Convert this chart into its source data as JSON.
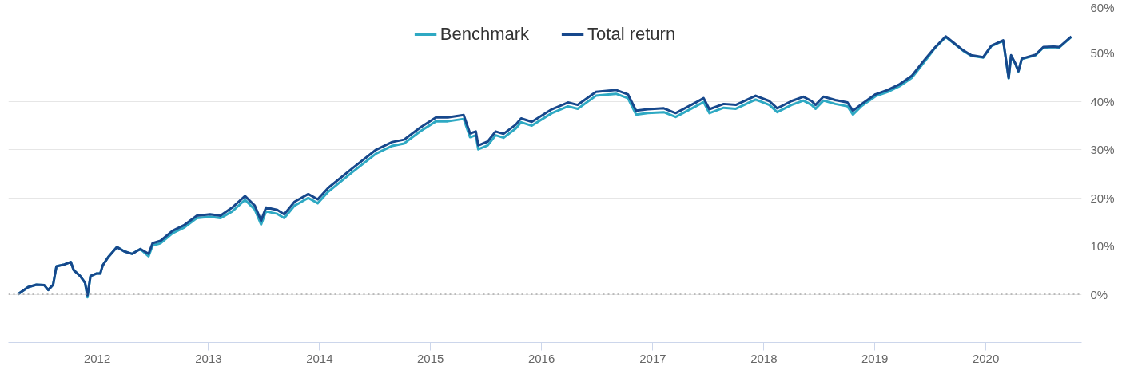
{
  "chart_data": {
    "type": "line",
    "x": [
      "2011-04-15",
      "2011-05-19",
      "2011-06-15",
      "2011-07-11",
      "2011-07-24",
      "2011-08-09",
      "2011-08-20",
      "2011-09-15",
      "2011-10-06",
      "2011-10-16",
      "2011-11-06",
      "2011-11-22",
      "2011-11-30",
      "2011-12-10",
      "2011-12-29",
      "2012-01-11",
      "2012-01-19",
      "2012-02-06",
      "2012-03-06",
      "2012-03-30",
      "2012-04-25",
      "2012-05-22",
      "2012-06-18",
      "2012-07-01",
      "2012-07-27",
      "2012-09-05",
      "2012-10-14",
      "2012-11-23",
      "2013-01-06",
      "2013-02-09",
      "2013-03-20",
      "2013-05-01",
      "2013-06-02",
      "2013-06-23",
      "2013-07-09",
      "2013-08-15",
      "2013-09-07",
      "2013-10-11",
      "2013-11-25",
      "2013-12-26",
      "2014-01-30",
      "2014-04-18",
      "2014-07-06",
      "2014-08-28",
      "2014-10-06",
      "2014-11-28",
      "2015-01-19",
      "2015-02-27",
      "2015-04-20",
      "2015-05-11",
      "2015-05-30",
      "2015-06-07",
      "2015-07-08",
      "2015-08-03",
      "2015-08-29",
      "2015-10-08",
      "2015-10-26",
      "2015-11-30",
      "2016-02-04",
      "2016-03-28",
      "2016-04-29",
      "2016-06-28",
      "2016-09-02",
      "2016-10-11",
      "2016-11-07",
      "2016-12-16",
      "2017-02-06",
      "2017-03-17",
      "2017-05-22",
      "2017-06-17",
      "2017-07-06",
      "2017-08-22",
      "2017-10-01",
      "2017-12-05",
      "2018-01-19",
      "2018-02-14",
      "2018-04-02",
      "2018-05-11",
      "2018-06-07",
      "2018-06-20",
      "2018-07-16",
      "2018-08-24",
      "2018-10-03",
      "2018-10-21",
      "2018-11-19",
      "2019-01-03",
      "2019-02-12",
      "2019-03-24",
      "2019-05-02",
      "2019-06-10",
      "2019-07-19",
      "2019-08-22",
      "2019-09-15",
      "2019-10-19",
      "2019-11-14",
      "2019-12-23",
      "2020-01-19",
      "2020-02-27",
      "2020-03-16",
      "2020-03-24",
      "2020-04-07",
      "2020-04-17",
      "2020-04-28",
      "2020-06-12",
      "2020-07-08",
      "2020-08-11",
      "2020-08-29",
      "2020-10-08"
    ],
    "series": [
      {
        "name": "Benchmark",
        "color": "#2ea9c3",
        "values": [
          0,
          1.5,
          2.0,
          1.9,
          0.9,
          2.0,
          5.8,
          6.2,
          6.7,
          5.0,
          3.8,
          2.4,
          -0.6,
          3.8,
          4.3,
          4.3,
          6.0,
          7.7,
          9.8,
          8.9,
          8.4,
          9.4,
          7.9,
          10.1,
          10.6,
          12.7,
          13.9,
          15.8,
          16.1,
          15.8,
          17.2,
          19.6,
          17.6,
          14.5,
          17.2,
          16.7,
          15.8,
          18.4,
          20.0,
          18.9,
          21.3,
          25.3,
          29.2,
          30.8,
          31.3,
          33.8,
          35.9,
          35.9,
          36.4,
          32.6,
          33.0,
          30.1,
          30.9,
          33.0,
          32.5,
          34.4,
          35.7,
          35.0,
          37.6,
          39.0,
          38.5,
          41.2,
          41.6,
          40.7,
          37.3,
          37.6,
          37.8,
          36.8,
          39.0,
          39.9,
          37.6,
          38.7,
          38.5,
          40.4,
          39.3,
          37.8,
          39.3,
          40.2,
          39.3,
          38.5,
          40.2,
          39.5,
          39.0,
          37.3,
          39.1,
          41.1,
          42.0,
          43.2,
          44.9,
          48.0,
          51.2,
          53.4,
          52.2,
          50.5,
          49.5,
          49.1,
          51.5,
          52.6,
          44.8,
          49.5,
          47.8,
          46.2,
          48.8,
          49.6,
          51.2,
          51.3,
          51.2,
          53.4
        ]
      },
      {
        "name": "Total return",
        "color": "#17488c",
        "values": [
          0,
          1.5,
          2.0,
          1.9,
          0.9,
          2.0,
          5.8,
          6.2,
          6.7,
          5.0,
          3.8,
          2.4,
          -0.2,
          3.8,
          4.3,
          4.3,
          6.0,
          7.7,
          9.8,
          8.9,
          8.4,
          9.4,
          8.4,
          10.6,
          11.1,
          13.2,
          14.4,
          16.3,
          16.6,
          16.3,
          18.0,
          20.4,
          18.4,
          15.3,
          18.0,
          17.5,
          16.6,
          19.2,
          20.8,
          19.7,
          22.1,
          26.1,
          30.0,
          31.6,
          32.1,
          34.6,
          36.7,
          36.7,
          37.2,
          33.4,
          33.8,
          30.9,
          31.7,
          33.8,
          33.3,
          35.2,
          36.5,
          35.8,
          38.4,
          39.8,
          39.3,
          42.0,
          42.4,
          41.5,
          38.1,
          38.4,
          38.6,
          37.6,
          39.8,
          40.7,
          38.4,
          39.5,
          39.3,
          41.2,
          40.1,
          38.6,
          40.1,
          41.0,
          40.1,
          39.3,
          41.0,
          40.3,
          39.8,
          38.1,
          39.5,
          41.5,
          42.4,
          43.6,
          45.3,
          48.4,
          51.3,
          53.5,
          52.3,
          50.6,
          49.6,
          49.2,
          51.6,
          52.7,
          44.9,
          49.6,
          47.9,
          46.3,
          48.9,
          49.7,
          51.3,
          51.4,
          51.3,
          53.5
        ]
      }
    ],
    "xlim": [
      "2011-03-15",
      "2020-11-11"
    ],
    "xticks": [
      {
        "value": "2012-01-01",
        "label": "2012"
      },
      {
        "value": "2013-01-01",
        "label": "2013"
      },
      {
        "value": "2014-01-01",
        "label": "2014"
      },
      {
        "value": "2015-01-01",
        "label": "2015"
      },
      {
        "value": "2016-01-01",
        "label": "2016"
      },
      {
        "value": "2017-01-01",
        "label": "2017"
      },
      {
        "value": "2018-01-01",
        "label": "2018"
      },
      {
        "value": "2019-01-01",
        "label": "2019"
      },
      {
        "value": "2020-01-01",
        "label": "2020"
      }
    ],
    "ylim": [
      -10,
      60
    ],
    "yticks": [
      {
        "value": 0,
        "label": "0%"
      },
      {
        "value": 10,
        "label": "10%"
      },
      {
        "value": 20,
        "label": "20%"
      },
      {
        "value": 30,
        "label": "30%"
      },
      {
        "value": 40,
        "label": "40%"
      },
      {
        "value": 50,
        "label": "50%"
      },
      {
        "value": 60,
        "label": "60%"
      }
    ],
    "ref_lines": [
      {
        "axis": "y",
        "value": 0,
        "color": "#aaaaaa",
        "line_style": "dotted"
      }
    ],
    "grid": "y",
    "legend": "top",
    "line_style": "solid",
    "marker": "none"
  }
}
